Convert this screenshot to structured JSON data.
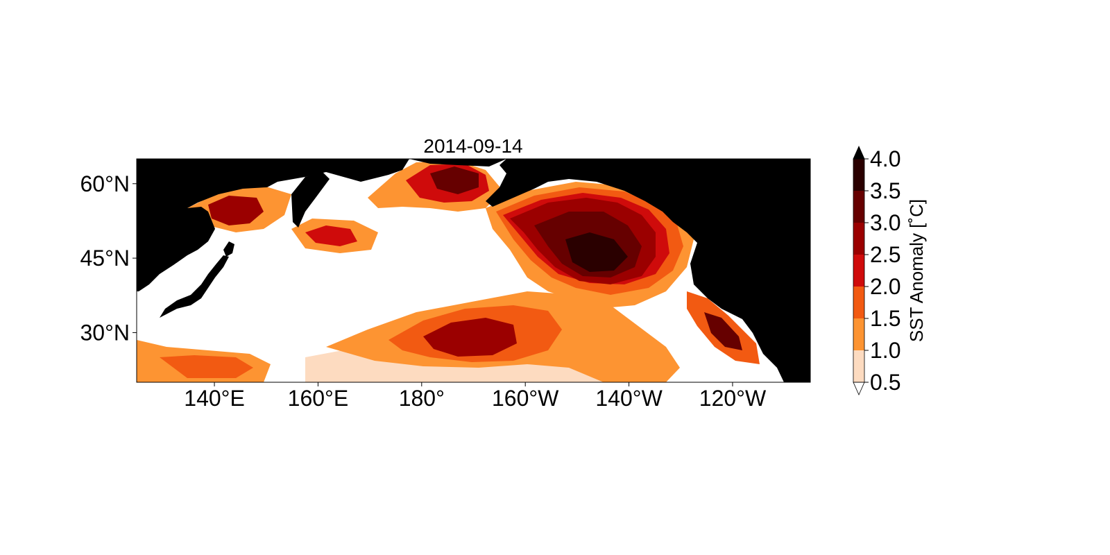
{
  "title": "2014-09-14",
  "map": {
    "lon_range": [
      125,
      255
    ],
    "lat_range": [
      20,
      65
    ],
    "land_color": "#000000",
    "ocean_color": "#ffffff"
  },
  "axes": {
    "x_ticks": [
      {
        "lon": 140,
        "label": "140°E"
      },
      {
        "lon": 160,
        "label": "160°E"
      },
      {
        "lon": 180,
        "label": "180°"
      },
      {
        "lon": 200,
        "label": "160°W"
      },
      {
        "lon": 220,
        "label": "140°W"
      },
      {
        "lon": 240,
        "label": "120°W"
      }
    ],
    "y_ticks": [
      {
        "lat": 60,
        "label": "60°N"
      },
      {
        "lat": 45,
        "label": "45°N"
      },
      {
        "lat": 30,
        "label": "30°N"
      }
    ]
  },
  "colorbar": {
    "label": "SST Anomaly [$^\\circ$C]",
    "label_display": "SST Anomaly [˚C]",
    "levels": [
      {
        "value": 0.5,
        "label": "0.5"
      },
      {
        "value": 1.0,
        "label": "1.0"
      },
      {
        "value": 1.5,
        "label": "1.5"
      },
      {
        "value": 2.0,
        "label": "2.0"
      },
      {
        "value": 2.5,
        "label": "2.5"
      },
      {
        "value": 3.0,
        "label": "3.0"
      },
      {
        "value": 3.5,
        "label": "3.5"
      },
      {
        "value": 4.0,
        "label": "4.0"
      }
    ],
    "colors": [
      "#fddbc0",
      "#fd9432",
      "#f25a12",
      "#cf0b0b",
      "#9b0000",
      "#660000",
      "#2a0000"
    ],
    "extend_min_color": "#ffffff",
    "extend_max_color": "#000000"
  }
}
